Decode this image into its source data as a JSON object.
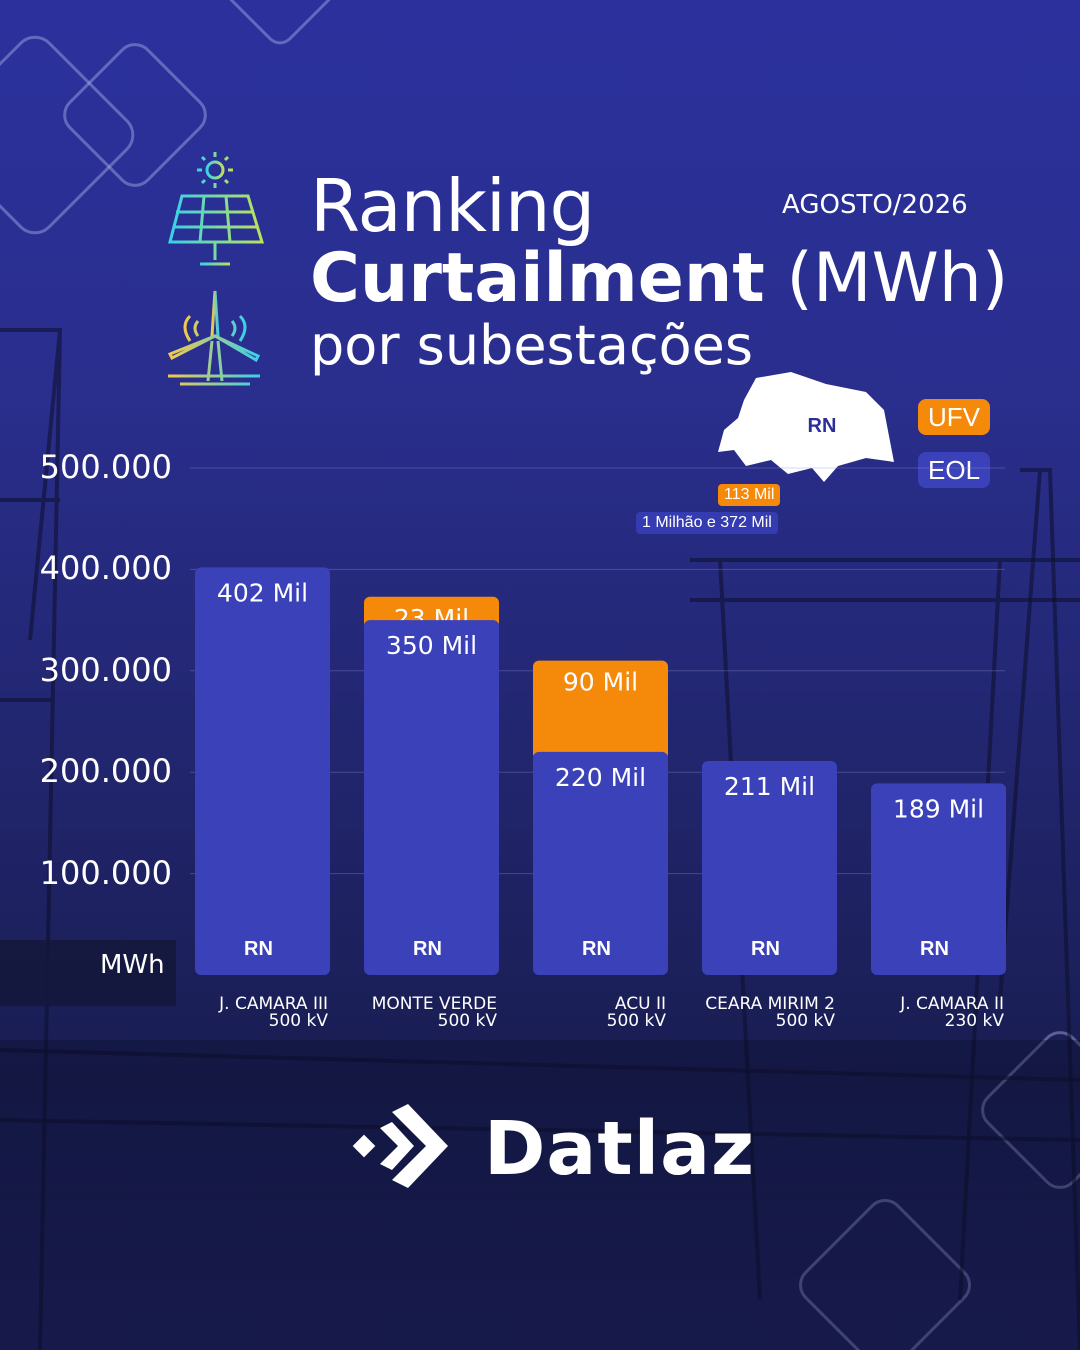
{
  "header": {
    "title_line1": "Ranking",
    "title_bold": "Curtailment",
    "title_unit": " (MWh)",
    "title_line3": "por subestações",
    "date": "AGOSTO/2026"
  },
  "legend": {
    "map_label": "RN",
    "ufv_label": "UFV",
    "eol_label": "EOL",
    "ufv_total": "113 Mil",
    "eol_total": "1 Milhão e 372 Mil",
    "colors": {
      "eol": "#3b41b8",
      "ufv": "#f5890a"
    }
  },
  "chart_data": {
    "type": "bar",
    "stacked": true,
    "unit_label": "MWh",
    "ylim": [
      0,
      500000
    ],
    "y_ticks": [
      100000,
      200000,
      300000,
      400000,
      500000
    ],
    "y_tick_labels": [
      "100.000",
      "200.000",
      "300.000",
      "400.000",
      "500.000"
    ],
    "grid": true,
    "categories": [
      {
        "name": "J. CAMARA III",
        "voltage": "500 kV",
        "state": "RN"
      },
      {
        "name": "MONTE VERDE",
        "voltage": "500 kV",
        "state": "RN"
      },
      {
        "name": "ACU II",
        "voltage": "500 kV",
        "state": "RN"
      },
      {
        "name": "CEARA MIRIM 2",
        "voltage": "500 kV",
        "state": "RN"
      },
      {
        "name": "J. CAMARA II",
        "voltage": "230 kV",
        "state": "RN"
      }
    ],
    "series": [
      {
        "name": "EOL",
        "values": [
          402000,
          350000,
          220000,
          211000,
          189000
        ],
        "labels": [
          "402 Mil",
          "350 Mil",
          "220 Mil",
          "211 Mil",
          "189 Mil"
        ]
      },
      {
        "name": "UFV",
        "values": [
          0,
          23000,
          90000,
          0,
          0
        ],
        "labels": [
          "",
          "23 Mil",
          "90 Mil",
          "",
          ""
        ]
      }
    ]
  },
  "brand": {
    "name": "Datlaz"
  }
}
